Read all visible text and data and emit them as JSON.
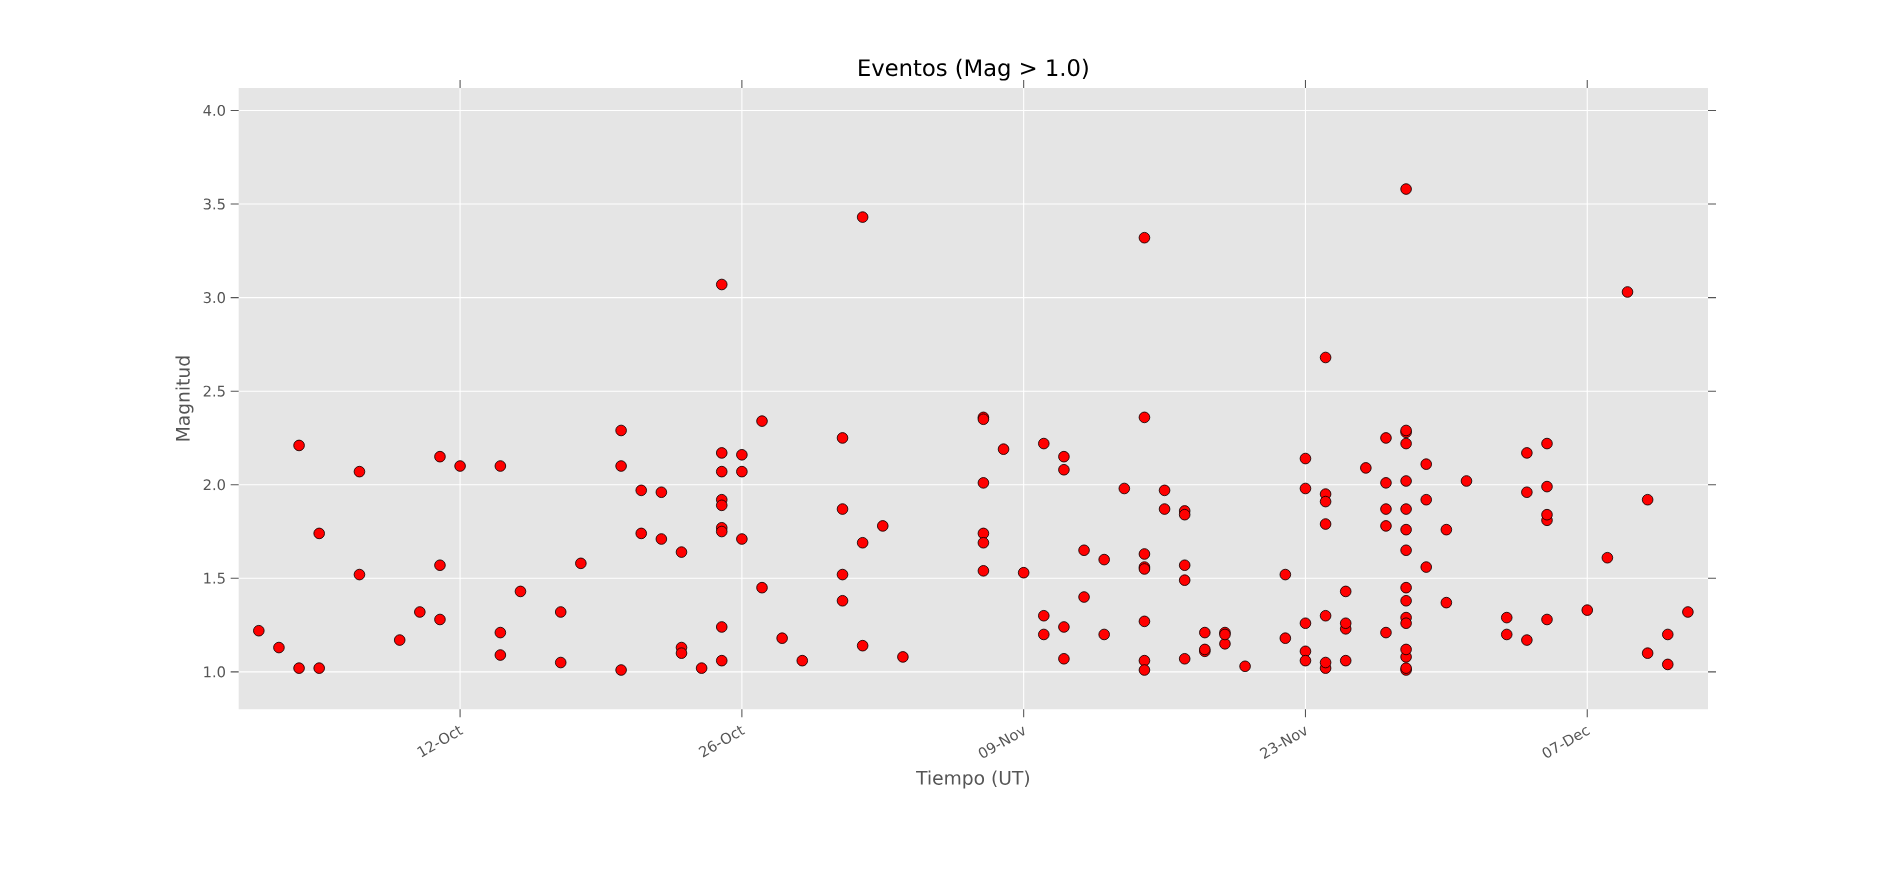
{
  "chart_data": {
    "type": "scatter",
    "title": "Eventos (Mag > 1.0)",
    "xlabel": "Tiempo (UT)",
    "ylabel": "Magnitud",
    "color": "#ff0000",
    "marker": "circle",
    "grid": true,
    "xlim": [
      "--10-01",
      "--12-13"
    ],
    "ylim": [
      0.8,
      4.12
    ],
    "xticks": [
      {
        "value": "--10-12",
        "label": "12-Oct"
      },
      {
        "value": "--10-26",
        "label": "26-Oct"
      },
      {
        "value": "--11-09",
        "label": "09-Nov"
      },
      {
        "value": "--11-23",
        "label": "23-Nov"
      },
      {
        "value": "--12-07",
        "label": "07-Dec"
      }
    ],
    "yticks": [
      {
        "value": 1,
        "label": "1.0"
      },
      {
        "value": 1.5,
        "label": "1.5"
      },
      {
        "value": 2,
        "label": "2.0"
      },
      {
        "value": 2.5,
        "label": "2.5"
      },
      {
        "value": 3,
        "label": "3.0"
      },
      {
        "value": 3.5,
        "label": "3.5"
      },
      {
        "value": 4,
        "label": "4.0"
      }
    ],
    "x": [
      "--10-02",
      "--10-03",
      "--10-04",
      "--10-04",
      "--10-05",
      "--10-05",
      "--10-07",
      "--10-07",
      "--10-09",
      "--10-10",
      "--10-11",
      "--10-11",
      "--10-11",
      "--10-12",
      "--10-14",
      "--10-14",
      "--10-14",
      "--10-15",
      "--10-17",
      "--10-17",
      "--10-18",
      "--10-20",
      "--10-20",
      "--10-20",
      "--10-21",
      "--10-21",
      "--10-22",
      "--10-22",
      "--10-23",
      "--10-23",
      "--10-23",
      "--10-24",
      "--10-25",
      "--10-25",
      "--10-25",
      "--10-25",
      "--10-25",
      "--10-25",
      "--10-25",
      "--10-25",
      "--10-25",
      "--10-26",
      "--10-26",
      "--10-26",
      "--10-27",
      "--10-27",
      "--10-28",
      "--10-29",
      "--10-31",
      "--10-31",
      "--10-31",
      "--10-31",
      "--11-01",
      "--11-01",
      "--11-01",
      "--11-02",
      "--11-03",
      "--11-07",
      "--11-07",
      "--11-07",
      "--11-07",
      "--11-07",
      "--11-07",
      "--11-08",
      "--11-09",
      "--11-10",
      "--11-10",
      "--11-10",
      "--11-11",
      "--11-11",
      "--11-11",
      "--11-11",
      "--11-12",
      "--11-12",
      "--11-13",
      "--11-13",
      "--11-14",
      "--11-15",
      "--11-15",
      "--11-15",
      "--11-15",
      "--11-15",
      "--11-15",
      "--11-15",
      "--11-15",
      "--11-16",
      "--11-16",
      "--11-17",
      "--11-17",
      "--11-17",
      "--11-17",
      "--11-17",
      "--11-18",
      "--11-18",
      "--11-18",
      "--11-19",
      "--11-19",
      "--11-19",
      "--11-20",
      "--11-22",
      "--11-22",
      "--11-23",
      "--11-23",
      "--11-23",
      "--11-23",
      "--11-23",
      "--11-24",
      "--11-24",
      "--11-24",
      "--11-24",
      "--11-24",
      "--11-24",
      "--11-24",
      "--11-25",
      "--11-25",
      "--11-25",
      "--11-25",
      "--11-26",
      "--11-27",
      "--11-27",
      "--11-27",
      "--11-27",
      "--11-27",
      "--11-28",
      "--11-28",
      "--11-28",
      "--11-28",
      "--11-28",
      "--11-28",
      "--11-28",
      "--11-28",
      "--11-28",
      "--11-28",
      "--11-28",
      "--11-28",
      "--11-28",
      "--11-28",
      "--11-28",
      "--11-28",
      "--11-29",
      "--11-29",
      "--11-29",
      "--11-30",
      "--11-30",
      "--12-01",
      "--12-03",
      "--12-03",
      "--12-04",
      "--12-04",
      "--12-04",
      "--12-05",
      "--12-05",
      "--12-05",
      "--12-05",
      "--12-05",
      "--12-07",
      "--12-08",
      "--12-09",
      "--12-10",
      "--12-10",
      "--12-11",
      "--12-11",
      "--12-12"
    ],
    "values": [
      1.22,
      1.13,
      2.21,
      1.02,
      1.74,
      1.02,
      1.52,
      2.07,
      1.17,
      1.32,
      2.15,
      1.57,
      1.28,
      2.1,
      2.1,
      1.21,
      1.09,
      1.43,
      1.32,
      1.05,
      1.58,
      2.29,
      1.01,
      2.1,
      1.97,
      1.74,
      1.71,
      1.96,
      1.64,
      1.13,
      1.1,
      1.02,
      3.07,
      2.17,
      1.06,
      1.24,
      1.92,
      1.89,
      2.07,
      1.77,
      1.75,
      2.16,
      2.07,
      1.71,
      1.45,
      2.34,
      1.18,
      1.06,
      1.38,
      2.25,
      1.52,
      1.87,
      3.43,
      1.69,
      1.14,
      1.78,
      1.08,
      2.36,
      2.35,
      2.01,
      1.74,
      1.69,
      1.54,
      2.19,
      1.53,
      1.2,
      2.22,
      1.3,
      1.24,
      2.15,
      2.08,
      1.07,
      1.65,
      1.4,
      1.6,
      1.2,
      1.98,
      3.32,
      1.27,
      2.36,
      1.06,
      1.63,
      1.56,
      1.55,
      1.01,
      1.97,
      1.87,
      1.86,
      1.84,
      1.57,
      1.49,
      1.07,
      1.11,
      1.12,
      1.21,
      1.21,
      1.15,
      1.2,
      1.03,
      1.18,
      1.52,
      1.11,
      2.14,
      1.98,
      1.26,
      1.06,
      2.68,
      1.79,
      1.3,
      1.02,
      1.95,
      1.91,
      1.05,
      1.23,
      1.06,
      1.43,
      1.26,
      2.09,
      2.25,
      2.01,
      1.87,
      1.78,
      1.21,
      2.28,
      1.08,
      1.01,
      2.29,
      3.58,
      2.02,
      1.87,
      1.65,
      2.22,
      1.76,
      1.45,
      1.38,
      1.29,
      1.26,
      1.12,
      1.02,
      1.56,
      1.92,
      2.11,
      1.76,
      1.37,
      2.02,
      1.29,
      1.2,
      1.17,
      2.17,
      1.96,
      1.28,
      1.81,
      2.22,
      1.99,
      1.84,
      1.33,
      1.61,
      3.03,
      1.92,
      1.1,
      1.2,
      1.04,
      1.32
    ]
  }
}
